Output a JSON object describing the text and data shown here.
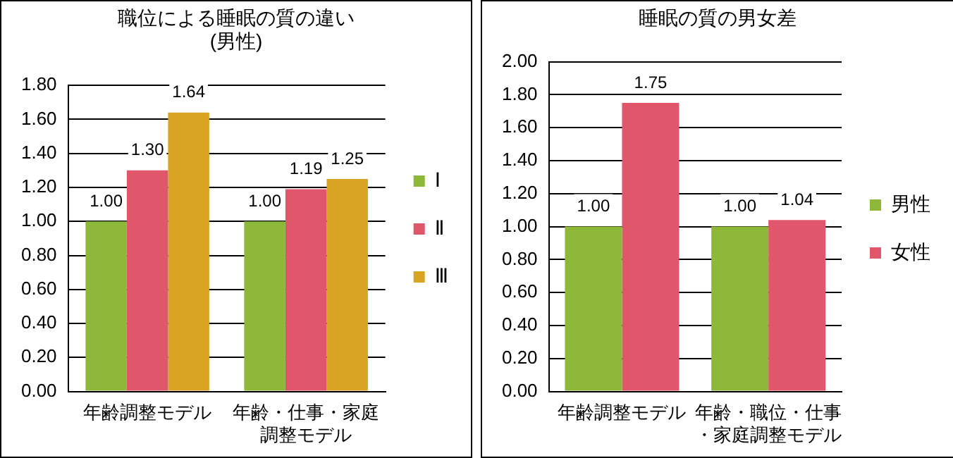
{
  "chart_data": [
    {
      "type": "bar",
      "title": [
        "職位による睡眠の質の違い",
        "(男性)"
      ],
      "categories": [
        "年齢調整モデル",
        "年齢・仕事・家庭調整モデル"
      ],
      "series": [
        {
          "name": "Ⅰ",
          "color": "#8db83a",
          "values": [
            1.0,
            1.0
          ],
          "value_labels": [
            "1.00",
            "1.00"
          ]
        },
        {
          "name": "Ⅱ",
          "color": "#e0566a",
          "values": [
            1.3,
            1.19
          ],
          "value_labels": [
            "1.30",
            "1.19"
          ]
        },
        {
          "name": "Ⅲ",
          "color": "#d9a423",
          "values": [
            1.64,
            1.25
          ],
          "value_labels": [
            "1.64",
            "1.25"
          ]
        }
      ],
      "ylim": [
        0,
        1.8
      ],
      "yticks": [
        {
          "value": 0,
          "label": "0.00"
        },
        {
          "value": 0.2,
          "label": "0.20"
        },
        {
          "value": 0.4,
          "label": "0.40"
        },
        {
          "value": 0.6,
          "label": "0.60"
        },
        {
          "value": 0.8,
          "label": "0.80"
        },
        {
          "value": 1,
          "label": "1.00"
        },
        {
          "value": 1.2,
          "label": "1.20"
        },
        {
          "value": 1.4,
          "label": "1.40"
        },
        {
          "value": 1.6,
          "label": "1.60"
        },
        {
          "value": 1.8,
          "label": "1.80"
        }
      ],
      "grid": "y",
      "legend": "right"
    },
    {
      "type": "bar",
      "title": "睡眠の質の男女差",
      "categories": [
        "年齢調整モデル",
        "年齢・職位・仕事・家庭調整モデル"
      ],
      "series": [
        {
          "name": "男性",
          "color": "#8db83a",
          "values": [
            1.0,
            1.0
          ],
          "value_labels": [
            "1.00",
            "1.00"
          ]
        },
        {
          "name": "女性",
          "color": "#e0566a",
          "values": [
            1.75,
            1.04
          ],
          "value_labels": [
            "1.75",
            "1.04"
          ]
        }
      ],
      "ylim": [
        0,
        2.0
      ],
      "yticks": [
        {
          "value": 0,
          "label": "0.00"
        },
        {
          "value": 0.2,
          "label": "0.20"
        },
        {
          "value": 0.4,
          "label": "0.40"
        },
        {
          "value": 0.6,
          "label": "0.60"
        },
        {
          "value": 0.8,
          "label": "0.80"
        },
        {
          "value": 1,
          "label": "1.00"
        },
        {
          "value": 1.2,
          "label": "1.20"
        },
        {
          "value": 1.4,
          "label": "1.40"
        },
        {
          "value": 1.6,
          "label": "1.60"
        },
        {
          "value": 1.8,
          "label": "1.80"
        },
        {
          "value": 2,
          "label": "2.00"
        }
      ],
      "grid": "y",
      "legend": "right"
    }
  ]
}
